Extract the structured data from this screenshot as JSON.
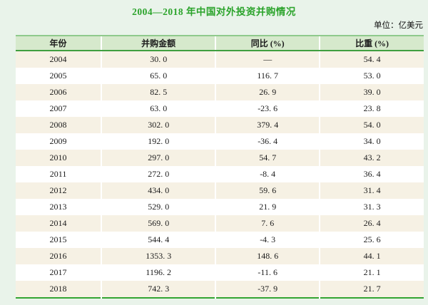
{
  "page": {
    "title": "2004—2018 年中国对外投资并购情况",
    "unit_note": "单位：亿美元"
  },
  "table": {
    "columns": [
      "年份",
      "并购金额",
      "同比 (%)",
      "比重 (%)"
    ],
    "rows": [
      [
        "2004",
        "30. 0",
        "—",
        "54. 4"
      ],
      [
        "2005",
        "65. 0",
        "116. 7",
        "53. 0"
      ],
      [
        "2006",
        "82. 5",
        "26. 9",
        "39. 0"
      ],
      [
        "2007",
        "63. 0",
        "-23. 6",
        "23. 8"
      ],
      [
        "2008",
        "302. 0",
        "379. 4",
        "54. 0"
      ],
      [
        "2009",
        "192. 0",
        "-36. 4",
        "34. 0"
      ],
      [
        "2010",
        "297. 0",
        "54. 7",
        "43. 2"
      ],
      [
        "2011",
        "272. 0",
        "-8. 4",
        "36. 4"
      ],
      [
        "2012",
        "434. 0",
        "59. 6",
        "31. 4"
      ],
      [
        "2013",
        "529. 0",
        "21. 9",
        "31. 3"
      ],
      [
        "2014",
        "569. 0",
        "7. 6",
        "26. 4"
      ],
      [
        "2015",
        "544. 4",
        "-4. 3",
        "25. 6"
      ],
      [
        "2016",
        "1353. 3",
        "148. 6",
        "44. 1"
      ],
      [
        "2017",
        "1196. 2",
        "-11. 6",
        "21. 1"
      ],
      [
        "2018",
        "742. 3",
        "-37. 9",
        "21. 7"
      ]
    ],
    "column_widths_percent": [
      21,
      28,
      25.5,
      25.5
    ]
  },
  "colors": {
    "page_background": "#e9f3ea",
    "title_green": "#2aa32a",
    "header_background": "#d6e9cc",
    "header_top_border": "#8fca8c",
    "header_bottom_border": "#3f9f3f",
    "table_bottom_border": "#33a533",
    "row_stripe_cream": "#f6f1e4",
    "row_stripe_white": "#ffffff",
    "text": "#1c1c1c"
  },
  "chart_data": {
    "type": "table",
    "title": "2004—2018 年中国对外投资并购情况",
    "unit": "亿美元",
    "columns": [
      "年份",
      "并购金额",
      "同比 (%)",
      "比重 (%)"
    ],
    "categories": [
      2004,
      2005,
      2006,
      2007,
      2008,
      2009,
      2010,
      2011,
      2012,
      2013,
      2014,
      2015,
      2016,
      2017,
      2018
    ],
    "series": [
      {
        "name": "并购金额",
        "values": [
          30.0,
          65.0,
          82.5,
          63.0,
          302.0,
          192.0,
          297.0,
          272.0,
          434.0,
          529.0,
          569.0,
          544.4,
          1353.3,
          1196.2,
          742.3
        ]
      },
      {
        "name": "同比(%)",
        "values": [
          null,
          116.7,
          26.9,
          -23.6,
          379.4,
          -36.4,
          54.7,
          -8.4,
          59.6,
          21.9,
          7.6,
          -4.3,
          148.6,
          -11.6,
          -37.9
        ]
      },
      {
        "name": "比重(%)",
        "values": [
          54.4,
          53.0,
          39.0,
          23.8,
          54.0,
          34.0,
          43.2,
          36.4,
          31.4,
          31.3,
          26.4,
          25.6,
          44.1,
          21.1,
          21.7
        ]
      }
    ]
  }
}
